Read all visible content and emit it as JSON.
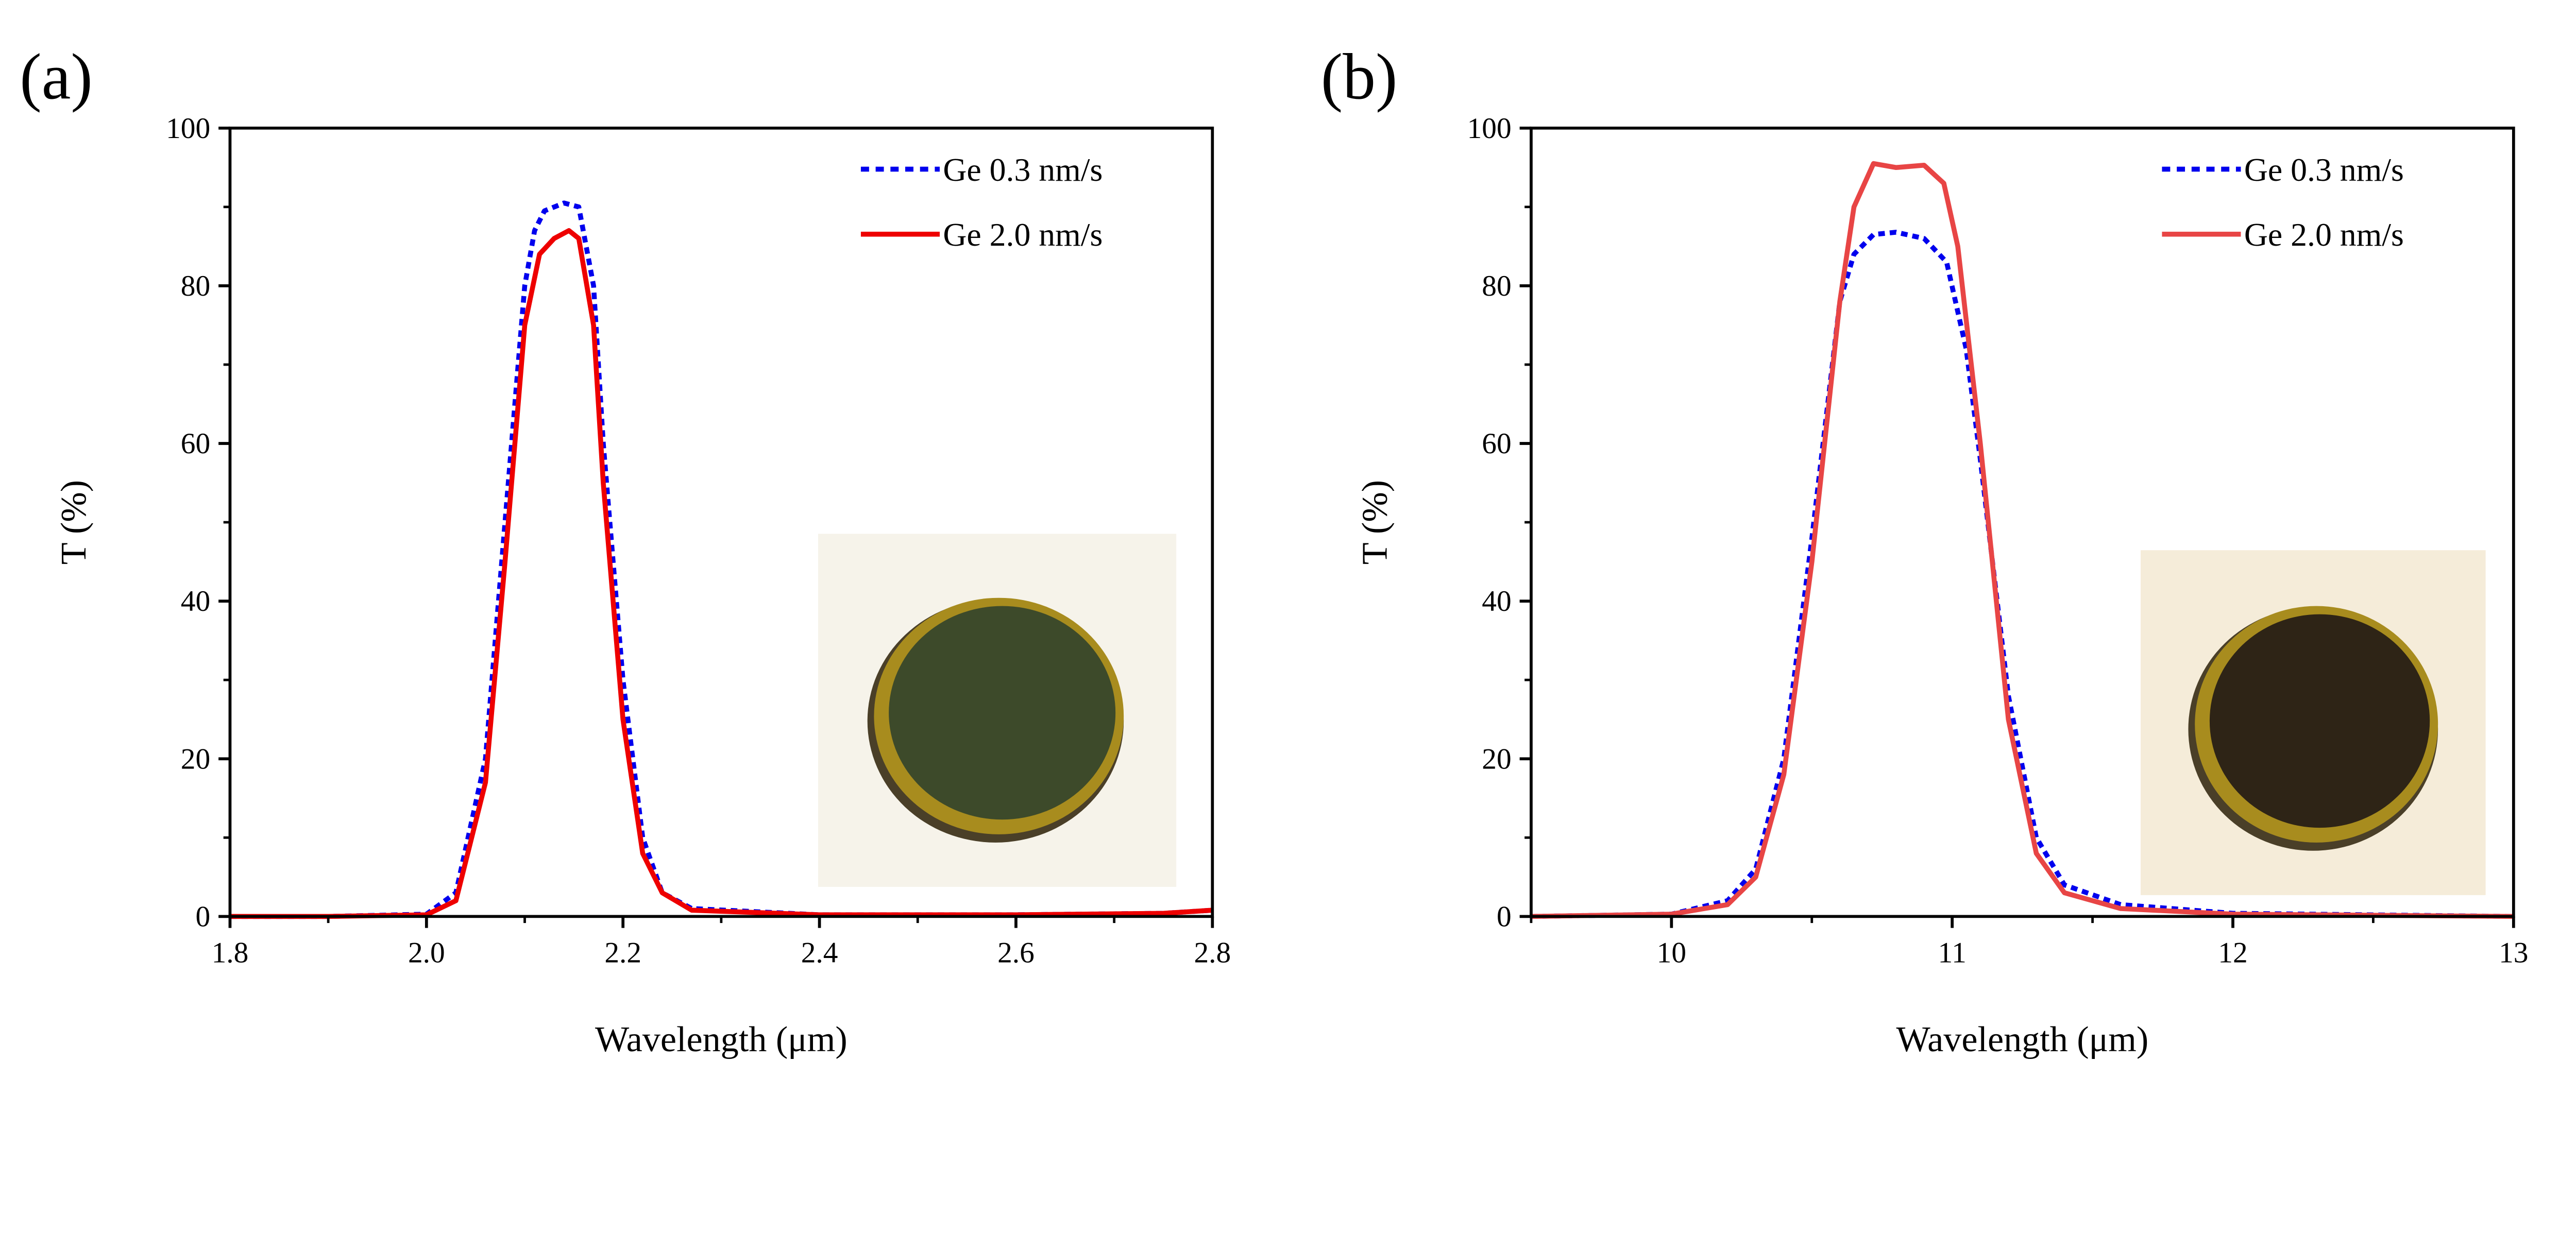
{
  "chart_data": [
    {
      "type": "line",
      "panel_label": "(a)",
      "xlabel": "Wavelength (μm)",
      "ylabel": "T (%)",
      "xlim": [
        1.8,
        2.8
      ],
      "ylim": [
        0,
        100
      ],
      "xticks": [
        "1.8",
        "2.0",
        "2.2",
        "2.4",
        "2.6",
        "2.8"
      ],
      "yticks": [
        "0",
        "20",
        "40",
        "60",
        "80",
        "100"
      ],
      "grid": false,
      "legend_position": "top-right",
      "inset": "photo of green-tinted filter disk in gold-rimmed holder",
      "series": [
        {
          "name": "Ge 0.3 nm/s",
          "color": "#0000ee",
          "style": "dashed",
          "x": [
            1.8,
            1.9,
            2.0,
            2.03,
            2.06,
            2.08,
            2.1,
            2.11,
            2.12,
            2.14,
            2.155,
            2.17,
            2.18,
            2.2,
            2.22,
            2.24,
            2.27,
            2.4,
            2.6,
            2.75,
            2.8
          ],
          "y": [
            0,
            0,
            0.3,
            3,
            20,
            50,
            80,
            87,
            89.5,
            90.5,
            90,
            80,
            60,
            30,
            10,
            3,
            1,
            0.2,
            0.2,
            0.4,
            0.8
          ]
        },
        {
          "name": "Ge 2.0 nm/s",
          "color": "#ee0000",
          "style": "solid",
          "x": [
            1.8,
            1.9,
            2.0,
            2.03,
            2.06,
            2.08,
            2.1,
            2.115,
            2.13,
            2.145,
            2.155,
            2.17,
            2.18,
            2.2,
            2.22,
            2.24,
            2.27,
            2.4,
            2.6,
            2.75,
            2.8
          ],
          "y": [
            0,
            0,
            0.2,
            2,
            17,
            45,
            75,
            84,
            86,
            87,
            86,
            75,
            55,
            25,
            8,
            3,
            0.8,
            0.2,
            0.2,
            0.4,
            0.8
          ]
        }
      ]
    },
    {
      "type": "line",
      "panel_label": "(b)",
      "xlabel": "Wavelength (μm)",
      "ylabel": "T (%)",
      "xlim": [
        9.5,
        13
      ],
      "ylim": [
        0,
        100
      ],
      "xticks": [
        "10",
        "11",
        "12",
        "13"
      ],
      "yticks": [
        "0",
        "20",
        "40",
        "60",
        "80",
        "100"
      ],
      "grid": false,
      "legend_position": "top-right",
      "inset": "photo of dark brown filter disk in gold-rimmed holder",
      "series": [
        {
          "name": "Ge 0.3 nm/s",
          "color": "#0000ee",
          "style": "dashed",
          "x": [
            9.5,
            10.0,
            10.2,
            10.3,
            10.4,
            10.5,
            10.6,
            10.65,
            10.72,
            10.8,
            10.9,
            10.98,
            11.05,
            11.1,
            11.2,
            11.3,
            11.4,
            11.6,
            12.0,
            13.0
          ],
          "y": [
            0,
            0.3,
            2,
            6,
            20,
            48,
            78,
            84,
            86.5,
            86.8,
            86,
            83,
            72,
            58,
            28,
            10,
            4,
            1.5,
            0.4,
            0
          ]
        },
        {
          "name": "Ge 2.0 nm/s",
          "color": "#e84545",
          "style": "solid",
          "x": [
            9.5,
            10.0,
            10.2,
            10.3,
            10.4,
            10.5,
            10.6,
            10.65,
            10.72,
            10.8,
            10.9,
            10.97,
            11.02,
            11.1,
            11.2,
            11.3,
            11.4,
            11.6,
            12.0,
            13.0
          ],
          "y": [
            0,
            0.3,
            1.5,
            5,
            18,
            45,
            78,
            90,
            95.5,
            95,
            95.3,
            93,
            85,
            60,
            25,
            8,
            3,
            1,
            0.3,
            0
          ]
        }
      ]
    }
  ]
}
